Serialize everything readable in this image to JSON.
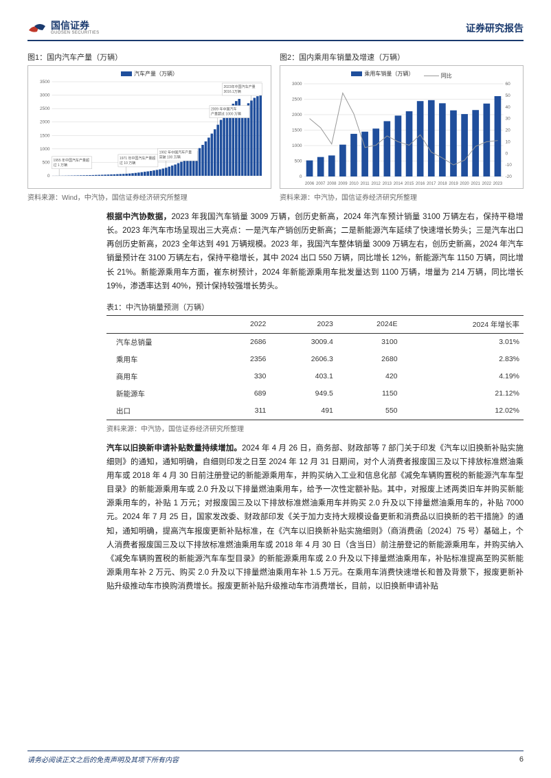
{
  "header": {
    "company_cn": "国信证券",
    "company_en": "GUOSEN SECURITIES",
    "report_type": "证券研究报告",
    "logo_color_1": "#c0392b",
    "logo_color_2": "#1a3a6e"
  },
  "chart1": {
    "title": "图1：国内汽车产量（万辆）",
    "legend": "汽车产量（万辆）",
    "source": "资料来源：Wind，中汽协，国信证券经济研究所整理",
    "type": "bar",
    "bar_color": "#1f4e9c",
    "grid_color": "#d0d0d0",
    "text_color": "#666666",
    "background": "#ffffff",
    "ylim": [
      0,
      3500
    ],
    "ytick_step": 500,
    "years_count": 69,
    "values_sample": [
      2,
      3,
      4,
      5,
      7,
      9,
      11,
      13,
      15,
      18,
      20,
      22,
      25,
      28,
      32,
      35,
      38,
      42,
      46,
      50,
      55,
      60,
      65,
      70,
      78,
      85,
      95,
      108,
      120,
      135,
      150,
      165,
      180,
      200,
      220,
      240,
      270,
      300,
      340,
      380,
      420,
      470,
      520,
      580,
      650,
      730,
      820,
      920,
      1030,
      1150,
      1280,
      1420,
      1570,
      1730,
      1900,
      2080,
      2260,
      2420,
      2560,
      2680,
      2780,
      2860,
      2300,
      2550,
      2700,
      2800,
      2900,
      2960,
      3016
    ],
    "annotations": [
      {
        "x_idx": 2,
        "text": "1955 年中国汽车产量超\n过 1 万辆"
      },
      {
        "x_idx": 24,
        "text": "1971 年中国汽车产量超\n过 10 万辆"
      },
      {
        "x_idx": 37,
        "text": "1992 年中国汽车产量\n突破 100 万辆"
      },
      {
        "x_idx": 54,
        "text": "2009 年中国汽车\n产量超过 1000 万辆"
      },
      {
        "x_idx": 65,
        "text": "2023年中国汽车产量\n3016.1万辆"
      }
    ]
  },
  "chart2": {
    "title": "图2：国内乘用车销量及增速（万辆）",
    "legend_bar": "乘用车销量（万辆）",
    "legend_line": "同比",
    "source": "资料来源：中汽协，国信证券经济研究所整理",
    "type": "bar_line",
    "bar_color": "#1f4e9c",
    "line_color": "#999999",
    "grid_color": "#d0d0d0",
    "text_color": "#666666",
    "background": "#ffffff",
    "y1_lim": [
      0,
      3000
    ],
    "y1_tick_step": 500,
    "y2_lim": [
      -20,
      60
    ],
    "y2_tick_step": 10,
    "categories": [
      "2006",
      "2007",
      "2008",
      "2009",
      "2010",
      "2011",
      "2012",
      "2013",
      "2014",
      "2015",
      "2016",
      "2017",
      "2018",
      "2019",
      "2020",
      "2021",
      "2022",
      "2023"
    ],
    "bar_values": [
      520,
      630,
      680,
      1030,
      1380,
      1450,
      1550,
      1790,
      1970,
      2110,
      2440,
      2470,
      2370,
      2140,
      2020,
      2150,
      2360,
      2600
    ],
    "line_values": [
      30,
      22,
      8,
      52,
      34,
      5,
      7,
      15,
      10,
      7,
      16,
      1,
      -4,
      -10,
      -6,
      6,
      10,
      11
    ]
  },
  "paragraph1": {
    "bold": "根据中汽协数据，",
    "rest": "2023 年我国汽车销量 3009 万辆，创历史新高，2024 年汽车预计销量 3100 万辆左右，保持平稳增长。2023 年汽车市场呈现出三大亮点：一是汽车产销创历史新高；二是新能源汽车延续了快速增长势头；三是汽车出口再创历史新高，2023 全年达到 491 万辆规模。2023 年，我国汽车整体销量 3009 万辆左右，创历史新高，2024 年汽车销量预计在 3100 万辆左右，保持平稳增长，其中 2024 出口 550 万辆，同比增长 12%，新能源汽车 1150 万辆，同比增长 21%。新能源乘用车方面，崔东树预计，2024 年新能源乘用车批发量达到 1100 万辆，增量为 214 万辆，同比增长 19%，渗透率达到 40%，预计保持较强增长势头。"
  },
  "table1": {
    "title": "表1：中汽协销量预测（万辆）",
    "source": "资料来源：中汽协，国信证券经济研究所整理",
    "columns": [
      "",
      "2022",
      "2023",
      "2024E",
      "2024 年增长率"
    ],
    "rows": [
      [
        "汽车总销量",
        "2686",
        "3009.4",
        "3100",
        "3.01%"
      ],
      [
        "乘用车",
        "2356",
        "2606.3",
        "2680",
        "2.83%"
      ],
      [
        "商用车",
        "330",
        "403.1",
        "420",
        "4.19%"
      ],
      [
        "新能源车",
        "689",
        "949.5",
        "1150",
        "21.12%"
      ],
      [
        "出口",
        "311",
        "491",
        "550",
        "12.02%"
      ]
    ]
  },
  "paragraph2": {
    "bold": "汽车以旧换新申请补贴数量持续增加。",
    "rest": "2024 年 4 月 26 日，商务部、财政部等 7 部门关于印发《汽车以旧换新补贴实施细则》的通知，通知明确，自细则印发之日至 2024 年 12 月 31 日期间，对个人消费者报废国三及以下排放标准燃油乘用车或 2018 年 4 月 30 日前注册登记的新能源乘用车，并购买纳入工业和信息化部《减免车辆购置税的新能源汽车车型目录》的新能源乘用车或 2.0 升及以下排量燃油乘用车，给予一次性定额补贴。其中，对报废上述两类旧车并购买新能源乘用车的，补贴 1 万元；对报废国三及以下排放标准燃油乘用车并购买 2.0 升及以下排量燃油乘用车的，补贴 7000 元。2024 年 7 月 25 日，国家发改委、财政部印发《关于加力支持大规模设备更新和消费品以旧换新的若干措施》的通知，通知明确，提高汽车报废更新补贴标准，在《汽车以旧换新补贴实施细则》（商消费函〔2024〕75 号）基础上，个人消费者报废国三及以下排放标准燃油乘用车或 2018 年 4 月 30 日（含当日）前注册登记的新能源乘用车，并购买纳入《减免车辆购置税的新能源汽车车型目录》的新能源乘用车或 2.0 升及以下排量燃油乘用车，补贴标准提高至购买新能源乘用车补 2 万元、购买 2.0 升及以下排量燃油乘用车补 1.5 万元。在乘用车消费快速增长和普及背景下，报废更新补贴升级推动车市换购消费增长。报废更新补贴升级推动车市消费增长，目前，以旧换新申请补贴"
  },
  "footer": {
    "disclaimer": "请务必阅读正文之后的免责声明及其项下所有内容",
    "page_number": "6"
  }
}
